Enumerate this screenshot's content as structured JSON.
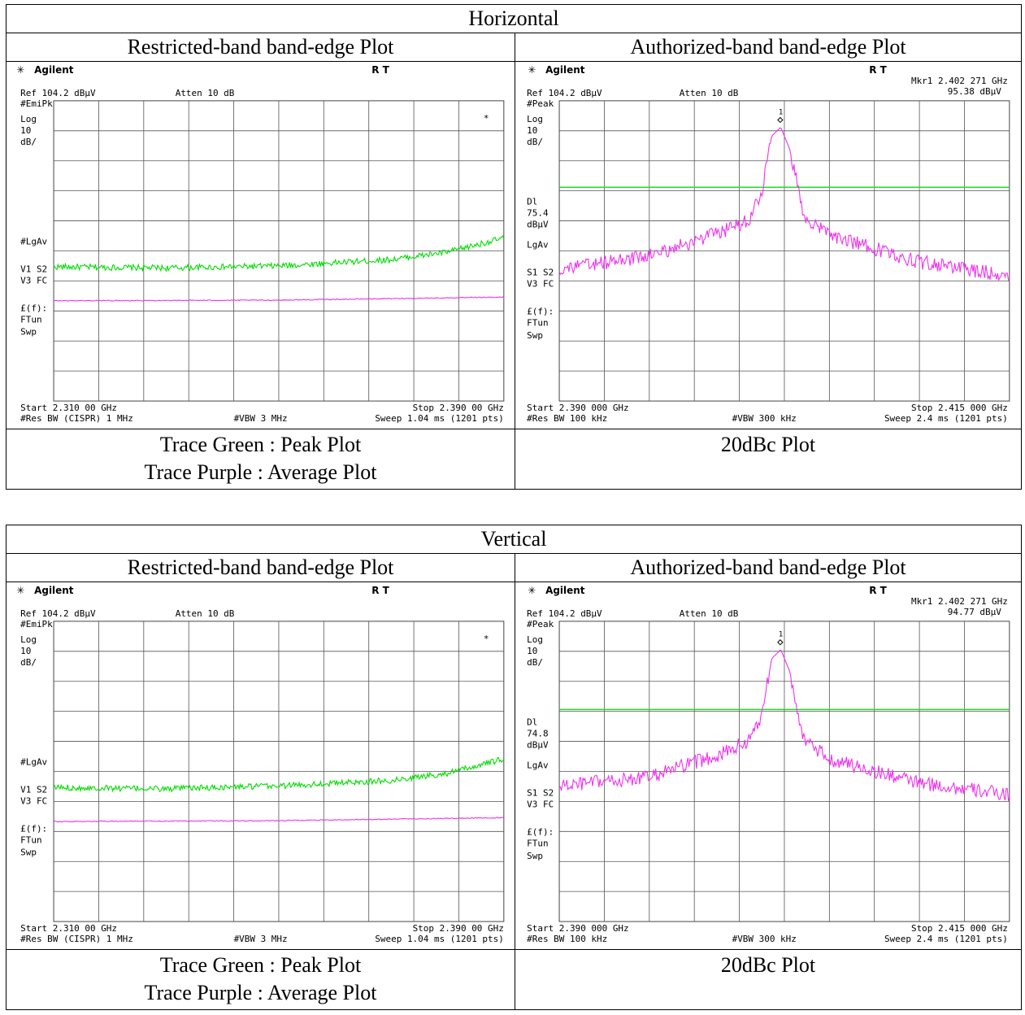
{
  "sections": [
    {
      "title": "Horizontal",
      "left_header": "Restricted-band band-edge Plot",
      "right_header": "Authorized-band band-edge Plot",
      "left_plot": {
        "brand": "Agilent",
        "rt": "R  T",
        "ref": "Ref 104.2 dBµV",
        "atten": "Atten 10 dB",
        "detector": "#EmiPk",
        "log": "Log",
        "scale": "10",
        "scale_unit": "dB/",
        "lgav": "#LgAv",
        "v1s2": "V1  S2",
        "v3fc": "V3  FC",
        "ff": "£(f):",
        "ftun": "FTun",
        "swp": "Swp",
        "star": "*",
        "start": "Start 2.310 00 GHz",
        "stop": "Stop 2.390 00 GHz",
        "rbw": "#Res BW (CISPR) 1 MHz",
        "vbw": "#VBW 3 MHz",
        "sweep": "Sweep 1.04 ms (1201 pts)"
      },
      "right_plot": {
        "brand": "Agilent",
        "rt": "R  T",
        "mkr": "Mkr1  2.402 271 GHz",
        "mkr_val": "95.38 dBµV",
        "ref": "Ref 104.2 dBµV",
        "atten": "Atten 10 dB",
        "detector": "#Peak",
        "log": "Log",
        "scale": "10",
        "scale_unit": "dB/",
        "dl": "Dl",
        "dl_val": "75.4",
        "dl_unit": "dBµV",
        "lgav": "LgAv",
        "s1s2": "S1  S2",
        "v3fc": "V3  FC",
        "ff": "£(f):",
        "ftun": "FTun",
        "swp": "Swp",
        "marker_num": "1",
        "start": "Start 2.390 000 GHz",
        "stop": "Stop 2.415 000 GHz",
        "rbw": "#Res BW 100 kHz",
        "vbw": "#VBW 300 kHz",
        "sweep": "Sweep 2.4 ms (1201 pts)"
      },
      "left_caption_1": "Trace Green : Peak Plot",
      "left_caption_2": "Trace Purple : Average Plot",
      "right_caption": "20dBc Plot"
    },
    {
      "title": "Vertical",
      "left_header": "Restricted-band band-edge Plot",
      "right_header": "Authorized-band band-edge Plot",
      "left_plot": {
        "brand": "Agilent",
        "rt": "R  T",
        "ref": "Ref 104.2 dBµV",
        "atten": "Atten 10 dB",
        "detector": "#EmiPk",
        "log": "Log",
        "scale": "10",
        "scale_unit": "dB/",
        "lgav": "#LgAv",
        "v1s2": "V1  S2",
        "v3fc": "V3  FC",
        "ff": "£(f):",
        "ftun": "FTun",
        "swp": "Swp",
        "star": "*",
        "start": "Start 2.310 00 GHz",
        "stop": "Stop 2.390 00 GHz",
        "rbw": "#Res BW (CISPR) 1 MHz",
        "vbw": "#VBW 3 MHz",
        "sweep": "Sweep 1.04 ms (1201 pts)"
      },
      "right_plot": {
        "brand": "Agilent",
        "rt": "R  T",
        "mkr": "Mkr1  2.402 271 GHz",
        "mkr_val": "94.77 dBµV",
        "ref": "Ref 104.2 dBµV",
        "atten": "Atten 10 dB",
        "detector": "#Peak",
        "log": "Log",
        "scale": "10",
        "scale_unit": "dB/",
        "dl": "Dl",
        "dl_val": "74.8",
        "dl_unit": "dBµV",
        "lgav": "LgAv",
        "s1s2": "S1  S2",
        "v3fc": "V3  FC",
        "ff": "£(f):",
        "ftun": "FTun",
        "swp": "Swp",
        "marker_num": "1",
        "start": "Start 2.390 000 GHz",
        "stop": "Stop 2.415 000 GHz",
        "rbw": "#Res BW 100 kHz",
        "vbw": "#VBW 300 kHz",
        "sweep": "Sweep 2.4 ms (1201 pts)"
      },
      "left_caption_1": "Trace Green : Peak Plot",
      "left_caption_2": "Trace Purple : Average Plot",
      "right_caption": "20dBc Plot"
    }
  ],
  "chart_data": [
    {
      "type": "line",
      "title": "",
      "xlabel": "",
      "ylabel": "",
      "xlim": [
        2.31,
        2.39
      ],
      "ylim": [
        4.2,
        104.2
      ],
      "series": [
        {
          "x": [
            2.31,
            2.33,
            2.35,
            2.37,
            2.38,
            2.39
          ],
          "values": [
            48.9,
            48.5,
            49.2,
            51.3,
            53.8,
            58.5
          ]
        },
        {
          "x": [
            2.31,
            2.35,
            2.39
          ],
          "values": [
            37.6,
            37.8,
            38.8
          ]
        }
      ],
      "colors": [
        "#00dd00",
        "#ee33ee"
      ]
    },
    {
      "type": "line",
      "title": "",
      "xlabel": "",
      "ylabel": "",
      "xlim": [
        2.39,
        2.415
      ],
      "ylim": [
        4.2,
        104.2
      ],
      "threshold": 75.4,
      "marker": {
        "x": 2.402271,
        "y": 95.38
      },
      "series": [
        {
          "x": [
            2.39,
            2.395,
            2.399,
            2.4005,
            2.4012,
            2.4018,
            2.4023,
            2.4028,
            2.4036,
            2.405,
            2.41,
            2.415
          ],
          "values": [
            48.1,
            52.5,
            60.5,
            64.5,
            72.5,
            92.5,
            95.38,
            88.0,
            65.5,
            59.5,
            50.5,
            46.0
          ]
        }
      ],
      "colors": [
        "#ee33ee"
      ]
    },
    {
      "type": "line",
      "title": "",
      "xlabel": "",
      "ylabel": "",
      "xlim": [
        2.31,
        2.39
      ],
      "ylim": [
        4.2,
        104.2
      ],
      "series": [
        {
          "x": [
            2.31,
            2.33,
            2.35,
            2.37,
            2.38,
            2.39
          ],
          "values": [
            48.9,
            48.4,
            49.4,
            51.2,
            53.6,
            58.3
          ]
        },
        {
          "x": [
            2.31,
            2.35,
            2.39
          ],
          "values": [
            37.5,
            37.8,
            38.8
          ]
        }
      ],
      "colors": [
        "#00dd00",
        "#ee33ee"
      ]
    },
    {
      "type": "line",
      "title": "",
      "xlabel": "",
      "ylabel": "",
      "xlim": [
        2.39,
        2.415
      ],
      "ylim": [
        4.2,
        104.2
      ],
      "threshold": 74.8,
      "marker": {
        "x": 2.402271,
        "y": 94.77
      },
      "series": [
        {
          "x": [
            2.39,
            2.395,
            2.399,
            2.4005,
            2.4012,
            2.4018,
            2.4023,
            2.4028,
            2.4036,
            2.405,
            2.41,
            2.415
          ],
          "values": [
            49.3,
            52.3,
            60.0,
            64.3,
            72.3,
            91.8,
            94.77,
            87.5,
            64.3,
            58.3,
            50.3,
            46.4
          ]
        }
      ],
      "colors": [
        "#ee33ee"
      ]
    }
  ]
}
